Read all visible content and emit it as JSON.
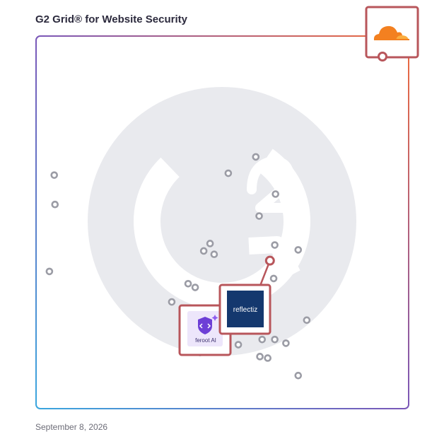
{
  "header": {
    "title": "G2 Grid® for Website Security"
  },
  "footer": {
    "date": "September 8, 2026"
  },
  "colors": {
    "highlight": "#b8565b",
    "point": "#9b9ca5",
    "watermark": "#e9eaee"
  },
  "chart_data": {
    "type": "scatter",
    "title": "G2 Grid® for Website Security",
    "xlabel": "",
    "ylabel": "",
    "xlim": [
      0,
      100
    ],
    "ylim": [
      0,
      100
    ],
    "grid": "quadrants",
    "points": [
      {
        "x": 4.7,
        "y": 62.8
      },
      {
        "x": 4.9,
        "y": 54.9
      },
      {
        "x": 51.5,
        "y": 63.3
      },
      {
        "x": 58.9,
        "y": 67.7
      },
      {
        "x": 64.2,
        "y": 57.7
      },
      {
        "x": 59.8,
        "y": 51.8
      },
      {
        "x": 64.0,
        "y": 44.0
      },
      {
        "x": 70.3,
        "y": 42.7
      },
      {
        "x": 46.6,
        "y": 44.4
      },
      {
        "x": 44.9,
        "y": 42.4
      },
      {
        "x": 47.7,
        "y": 41.5
      },
      {
        "x": 3.4,
        "y": 36.9
      },
      {
        "x": 63.7,
        "y": 35.0
      },
      {
        "x": 40.7,
        "y": 33.6
      },
      {
        "x": 42.6,
        "y": 32.6
      },
      {
        "x": 36.3,
        "y": 28.7
      },
      {
        "x": 72.6,
        "y": 23.8
      },
      {
        "x": 60.6,
        "y": 18.6
      },
      {
        "x": 64.0,
        "y": 18.6
      },
      {
        "x": 67.0,
        "y": 17.6
      },
      {
        "x": 54.2,
        "y": 17.2
      },
      {
        "x": 43.9,
        "y": 15.1
      },
      {
        "x": 60.0,
        "y": 14.0
      },
      {
        "x": 62.1,
        "y": 13.6
      },
      {
        "x": 70.3,
        "y": 8.9
      }
    ],
    "highlighted": [
      {
        "name": "Cloudflare",
        "x": 92.8,
        "y": 94.1,
        "logo": "cloudflare-logo"
      },
      {
        "name": "Reflectiz",
        "logo_text": "reflectiz",
        "x": 62.7,
        "y": 39.8
      },
      {
        "name": "Feroot AI",
        "logo_text": "feroot AI",
        "x": 43.9,
        "y": 15.1
      }
    ]
  }
}
